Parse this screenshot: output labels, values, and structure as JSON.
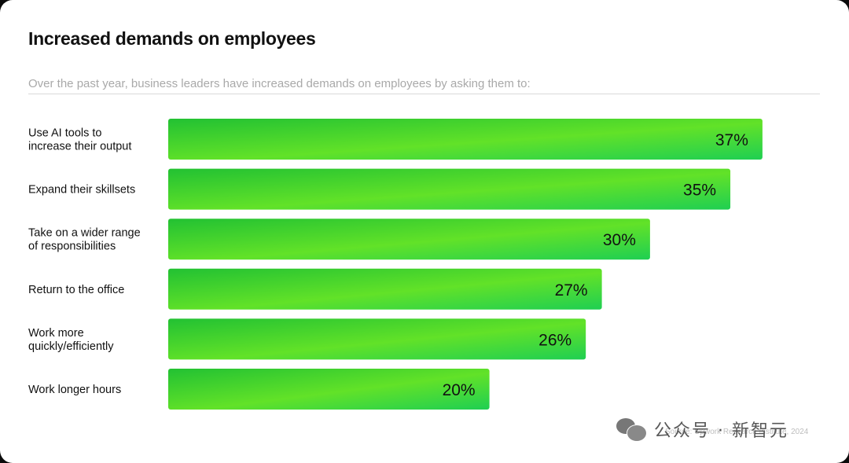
{
  "chart_data": {
    "type": "bar",
    "orientation": "horizontal",
    "title": "Increased demands on employees",
    "subtitle": "Over the past year, business leaders have increased demands on employees by asking them to:",
    "categories": [
      [
        "Use AI tools to",
        "increase their output"
      ],
      [
        "Expand their skillsets"
      ],
      [
        "Take on a wider range",
        "of responsibilities"
      ],
      [
        "Return to the office"
      ],
      [
        "Work more",
        "quickly/efficiently"
      ],
      [
        "Work longer hours"
      ]
    ],
    "values": [
      37,
      35,
      30,
      27,
      26,
      20
    ],
    "value_labels": [
      "37%",
      "35%",
      "30%",
      "27%",
      "26%",
      "20%"
    ],
    "unit": "%",
    "grid": false,
    "legend": "none",
    "colors": {
      "bar_start": "#22c133",
      "bar_mid": "#62e228",
      "bar_end": "#1fcf52"
    }
  },
  "footer": {
    "watermark": "公众号 · 新智元",
    "source": "Source: Upwork Research Institute, 2024"
  }
}
